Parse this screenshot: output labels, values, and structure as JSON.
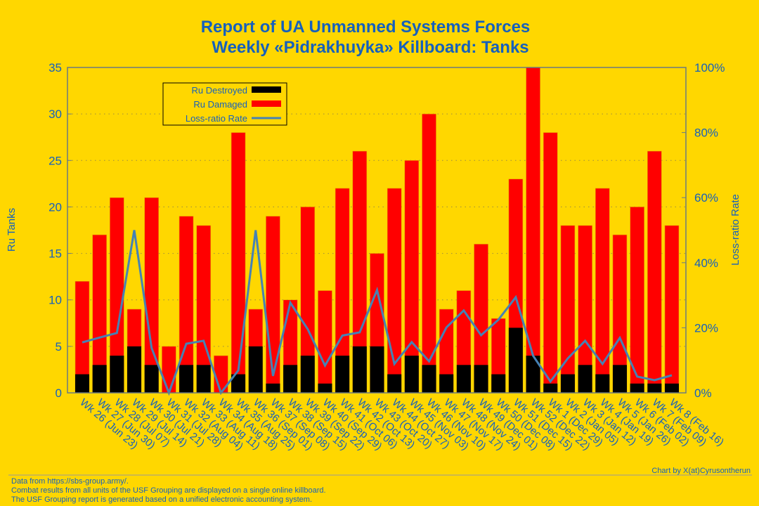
{
  "chart_data": {
    "type": "bar",
    "title": [
      "Report of UA Unmanned Systems Forces",
      "Weekly «Pidrakhuyka» Killboard: Tanks"
    ],
    "ylabel": "Ru Tanks",
    "y2label": "Loss-ratio Rate",
    "ylim": [
      0,
      35
    ],
    "y2lim": [
      0,
      100
    ],
    "yticks": [
      0,
      5,
      10,
      15,
      20,
      25,
      30,
      35
    ],
    "y2ticks": [
      "0%",
      "20%",
      "40%",
      "60%",
      "80%",
      "100%"
    ],
    "grid": true,
    "legend_position": "top-left",
    "categories": [
      "Wk 26 (Jun 23)",
      "Wk 27 (Jun 30)",
      "Wk 28 (Jul 07)",
      "Wk 29 (Jul 14)",
      "Wk 30 (Jul 21)",
      "Wk 31 (Jul 28)",
      "Wk 32 (Aug 04)",
      "Wk 33 (Aug 11)",
      "Wk 34 (Aug 18)",
      "Wk 35 (Aug 25)",
      "Wk 36 (Sep 01)",
      "Wk 37 (Sep 08)",
      "Wk 38 (Sep 15)",
      "Wk 39 (Sep 22)",
      "Wk 40 (Sep 29)",
      "Wk 41 (Oct 06)",
      "Wk 42 (Oct 13)",
      "Wk 43 (Oct 20)",
      "Wk 44 (Oct 27)",
      "Wk 45 (Nov 03)",
      "Wk 46 (Nov 10)",
      "Wk 47 (Nov 17)",
      "Wk 48 (Nov 24)",
      "Wk 49 (Dec 01)",
      "Wk 50 (Dec 08)",
      "Wk 51 (Dec 15)",
      "Wk 52 (Dec 22)",
      "Wk 1 (Dec 29)",
      "Wk 2 (Jan 05)",
      "Wk 3 (Jan 12)",
      "Wk 4 (Jan 19)",
      "Wk 5 (Jan 26)",
      "Wk 6 (Feb 02)",
      "Wk 7 (Feb 09)",
      "Wk 8 (Feb 16)"
    ],
    "series": [
      {
        "name": "Ru Destroyed",
        "color": "#000000",
        "values": [
          2,
          3,
          4,
          5,
          3,
          0,
          3,
          3,
          0,
          2,
          5,
          1,
          3,
          4,
          1,
          4,
          5,
          5,
          2,
          4,
          3,
          2,
          3,
          3,
          2,
          7,
          4,
          1,
          2,
          3,
          2,
          3,
          1,
          1,
          1
        ]
      },
      {
        "name": "Ru Damaged",
        "color": "#FF0000",
        "values": [
          12,
          17,
          21,
          9,
          21,
          5,
          19,
          18,
          4,
          28,
          9,
          19,
          10,
          20,
          11,
          22,
          26,
          15,
          22,
          25,
          30,
          9,
          11,
          16,
          8,
          23,
          35,
          28,
          18,
          18,
          22,
          17,
          20,
          26,
          18
        ]
      },
      {
        "name": "Loss-ratio Rate",
        "color": "#4682B4",
        "values": [
          15.5,
          17,
          18.4,
          50,
          13.8,
          0,
          15.1,
          16,
          0,
          6.9,
          50,
          5.2,
          27.7,
          19.6,
          8.4,
          17.6,
          18.6,
          31.6,
          8.9,
          15.6,
          9.7,
          20.1,
          25.3,
          17.7,
          22.5,
          29.4,
          11.4,
          3.5,
          10.6,
          16,
          8.9,
          16.9,
          5,
          3.9,
          5.4
        ]
      }
    ]
  },
  "footer": {
    "lines": [
      "Data from https://sbs-group.army/.",
      "Combat results from all units of the USF Grouping are displayed on a single online killboard.",
      "The USF Grouping report is generated based on a unified electronic accounting system."
    ],
    "credit": "Chart by X(at)Cyrusontherun"
  }
}
